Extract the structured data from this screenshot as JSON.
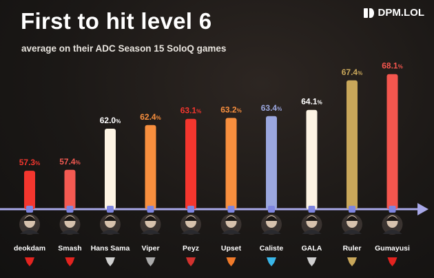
{
  "header": {
    "title": "First to hit level 6",
    "subtitle": "average on their ADC Season 15 SoloQ games",
    "brand": "DPM.LOL"
  },
  "chart_data": {
    "type": "bar",
    "title": "First to hit level 6",
    "subtitle": "average on their ADC Season 15 SoloQ games",
    "categories": [
      "deokdam",
      "Smash",
      "Hans Sama",
      "Viper",
      "Peyz",
      "Upset",
      "Caliste",
      "GALA",
      "Ruler",
      "Gumayusi"
    ],
    "values": [
      57.3,
      57.4,
      62.0,
      62.4,
      63.1,
      63.2,
      63.4,
      64.1,
      67.4,
      68.1
    ],
    "value_labels": [
      "57.3",
      "57.4",
      "62.0",
      "62.4",
      "63.1",
      "63.2",
      "63.4",
      "64.1",
      "67.4",
      "68.1"
    ],
    "unit": "%",
    "bar_colors": [
      "#f4362e",
      "#f45a52",
      "#fdf4e4",
      "#f88f3e",
      "#f4362e",
      "#f88f3e",
      "#9ba7df",
      "#fdf4e4",
      "#c9a75a",
      "#f4564e"
    ],
    "label_colors": [
      "#f4362e",
      "#f45a52",
      "#ffffff",
      "#f88f3e",
      "#f4362e",
      "#f88f3e",
      "#9ba7df",
      "#ffffff",
      "#c9a75a",
      "#f4564e"
    ],
    "team_logos": [
      "kt-rolster-logo",
      "t1-logo",
      "g2-logo",
      "gen-g-logo",
      "jdg-logo",
      "fnatic-logo",
      "karmine-corp-logo",
      "ig-logo",
      "gen-g-logo",
      "t1-logo"
    ],
    "team_logo_colors": [
      "#e3231f",
      "#e3231f",
      "#cfcfcf",
      "#aaaaaa",
      "#d2322e",
      "#f07a2a",
      "#39b6e8",
      "#cfcfcf",
      "#c9a75a",
      "#e3231f"
    ],
    "ylim": [
      53,
      69
    ],
    "grid": false,
    "legend": "none",
    "baseline_color": "#a8a8e8"
  }
}
